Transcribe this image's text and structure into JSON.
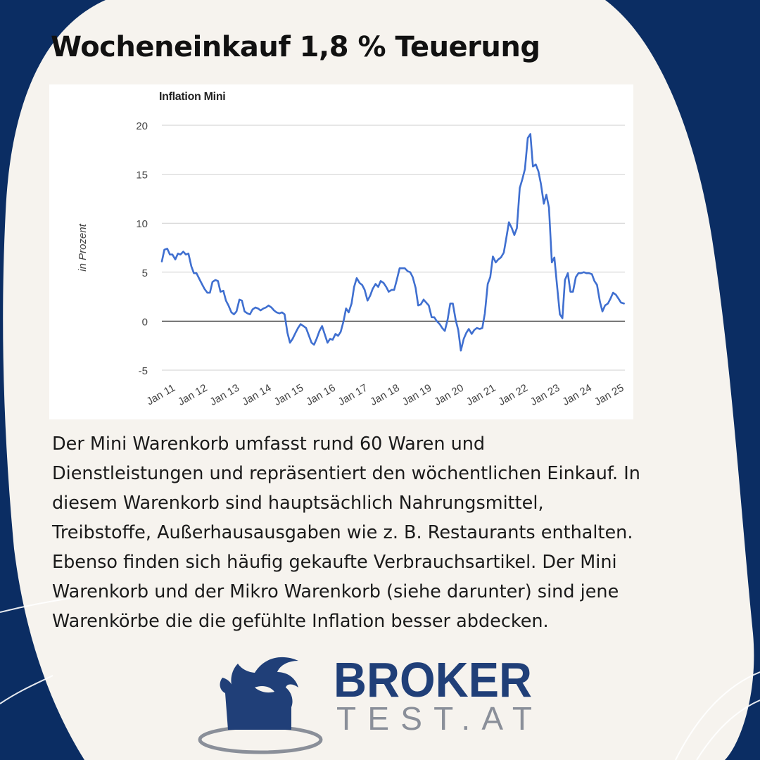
{
  "page": {
    "title": "Wocheneinkauf 1,8 % Teuerung",
    "body_lines": [
      "Der Mini Warenkorb umfasst rund 60 Waren und",
      "Dienstleistungen und repräsentiert den wöchentlichen Einkauf. In",
      "diesem Warenkorb sind hauptsächlich Nahrungsmittel,",
      "Treibstoffe, Außerhausausgaben wie z. B. Restaurants enthalten.",
      "Ebenso finden sich häufig gekaufte Verbrauchsartikel. Der Mini",
      "Warenkorb und der Mikro Warenkorb (siehe darunter) sind jene",
      "Warenkörbe die die gefühlte Inflation besser abdecken."
    ]
  },
  "brand": {
    "line1": "BROKER",
    "line2": "TEST.AT",
    "primary_color": "#203f78",
    "secondary_color": "#8a8f99"
  },
  "colors": {
    "background_dark": "#0b2d63",
    "background_light": "#f6f3ee",
    "line": "#3f6fd0"
  },
  "chart_data": {
    "type": "line",
    "title": "Inflation Mini",
    "ylabel": "in Prozent",
    "xlabel": "",
    "ylim": [
      -5,
      20
    ],
    "yticks": [
      -5,
      0,
      5,
      10,
      15,
      20
    ],
    "xlim": [
      2011,
      2025.45
    ],
    "xtick_labels": [
      "Jan 11",
      "Jan 12",
      "Jan 13",
      "Jan 14",
      "Jan 15",
      "Jan 16",
      "Jan 17",
      "Jan 18",
      "Jan 19",
      "Jan 20",
      "Jan 21",
      "Jan 22",
      "Jan 23",
      "Jan 24",
      "Jan 25"
    ],
    "grid": true,
    "legend": "none",
    "series": [
      {
        "points": [
          [
            2011.0,
            6.1
          ],
          [
            2011.08,
            7.3
          ],
          [
            2011.17,
            7.4
          ],
          [
            2011.25,
            6.8
          ],
          [
            2011.33,
            6.8
          ],
          [
            2011.42,
            6.3
          ],
          [
            2011.5,
            6.9
          ],
          [
            2011.58,
            6.8
          ],
          [
            2011.67,
            7.1
          ],
          [
            2011.75,
            6.8
          ],
          [
            2011.83,
            6.9
          ],
          [
            2011.92,
            5.6
          ],
          [
            2012.0,
            4.9
          ],
          [
            2012.08,
            4.9
          ],
          [
            2012.17,
            4.3
          ],
          [
            2012.25,
            3.8
          ],
          [
            2012.33,
            3.3
          ],
          [
            2012.42,
            2.9
          ],
          [
            2012.5,
            2.9
          ],
          [
            2012.58,
            4.0
          ],
          [
            2012.67,
            4.2
          ],
          [
            2012.75,
            4.1
          ],
          [
            2012.83,
            3.0
          ],
          [
            2012.92,
            3.1
          ],
          [
            2013.0,
            2.1
          ],
          [
            2013.08,
            1.6
          ],
          [
            2013.17,
            0.9
          ],
          [
            2013.25,
            0.7
          ],
          [
            2013.33,
            1.0
          ],
          [
            2013.42,
            2.2
          ],
          [
            2013.5,
            2.1
          ],
          [
            2013.58,
            1.0
          ],
          [
            2013.67,
            0.8
          ],
          [
            2013.75,
            0.7
          ],
          [
            2013.83,
            1.2
          ],
          [
            2013.92,
            1.4
          ],
          [
            2014.0,
            1.3
          ],
          [
            2014.08,
            1.1
          ],
          [
            2014.17,
            1.3
          ],
          [
            2014.25,
            1.4
          ],
          [
            2014.33,
            1.6
          ],
          [
            2014.42,
            1.4
          ],
          [
            2014.5,
            1.1
          ],
          [
            2014.58,
            0.9
          ],
          [
            2014.67,
            0.8
          ],
          [
            2014.75,
            0.9
          ],
          [
            2014.83,
            0.7
          ],
          [
            2014.92,
            -1.2
          ],
          [
            2015.0,
            -2.2
          ],
          [
            2015.08,
            -1.8
          ],
          [
            2015.17,
            -1.2
          ],
          [
            2015.25,
            -0.7
          ],
          [
            2015.33,
            -0.3
          ],
          [
            2015.42,
            -0.5
          ],
          [
            2015.5,
            -0.7
          ],
          [
            2015.58,
            -1.4
          ],
          [
            2015.67,
            -2.2
          ],
          [
            2015.75,
            -2.4
          ],
          [
            2015.83,
            -1.8
          ],
          [
            2015.92,
            -1.0
          ],
          [
            2016.0,
            -0.5
          ],
          [
            2016.08,
            -1.3
          ],
          [
            2016.17,
            -2.2
          ],
          [
            2016.25,
            -1.8
          ],
          [
            2016.33,
            -1.9
          ],
          [
            2016.42,
            -1.3
          ],
          [
            2016.5,
            -1.5
          ],
          [
            2016.58,
            -1.1
          ],
          [
            2016.67,
            0.0
          ],
          [
            2016.75,
            1.3
          ],
          [
            2016.83,
            0.9
          ],
          [
            2016.92,
            1.8
          ],
          [
            2017.0,
            3.5
          ],
          [
            2017.08,
            4.4
          ],
          [
            2017.17,
            3.9
          ],
          [
            2017.25,
            3.7
          ],
          [
            2017.33,
            3.2
          ],
          [
            2017.42,
            2.1
          ],
          [
            2017.5,
            2.6
          ],
          [
            2017.58,
            3.3
          ],
          [
            2017.67,
            3.8
          ],
          [
            2017.75,
            3.5
          ],
          [
            2017.83,
            4.1
          ],
          [
            2017.92,
            3.9
          ],
          [
            2018.0,
            3.5
          ],
          [
            2018.08,
            3.0
          ],
          [
            2018.17,
            3.2
          ],
          [
            2018.25,
            3.2
          ],
          [
            2018.33,
            4.2
          ],
          [
            2018.42,
            5.4
          ],
          [
            2018.5,
            5.4
          ],
          [
            2018.58,
            5.4
          ],
          [
            2018.67,
            5.1
          ],
          [
            2018.75,
            5.0
          ],
          [
            2018.83,
            4.5
          ],
          [
            2018.92,
            3.4
          ],
          [
            2019.0,
            1.6
          ],
          [
            2019.08,
            1.7
          ],
          [
            2019.17,
            2.2
          ],
          [
            2019.25,
            1.9
          ],
          [
            2019.33,
            1.6
          ],
          [
            2019.42,
            0.4
          ],
          [
            2019.5,
            0.4
          ],
          [
            2019.58,
            0.0
          ],
          [
            2019.67,
            -0.3
          ],
          [
            2019.75,
            -0.7
          ],
          [
            2019.83,
            -1.0
          ],
          [
            2019.92,
            0.2
          ],
          [
            2020.0,
            1.8
          ],
          [
            2020.08,
            1.8
          ],
          [
            2020.17,
            0.1
          ],
          [
            2020.25,
            -0.9
          ],
          [
            2020.33,
            -3.0
          ],
          [
            2020.42,
            -1.8
          ],
          [
            2020.5,
            -1.2
          ],
          [
            2020.58,
            -0.8
          ],
          [
            2020.67,
            -1.3
          ],
          [
            2020.75,
            -0.9
          ],
          [
            2020.83,
            -0.7
          ],
          [
            2020.92,
            -0.8
          ],
          [
            2021.0,
            -0.7
          ],
          [
            2021.08,
            0.8
          ],
          [
            2021.17,
            3.8
          ],
          [
            2021.25,
            4.5
          ],
          [
            2021.33,
            6.6
          ],
          [
            2021.42,
            6.0
          ],
          [
            2021.5,
            6.3
          ],
          [
            2021.58,
            6.5
          ],
          [
            2021.67,
            7.0
          ],
          [
            2021.75,
            8.5
          ],
          [
            2021.83,
            10.1
          ],
          [
            2021.92,
            9.5
          ],
          [
            2022.0,
            8.8
          ],
          [
            2022.08,
            9.5
          ],
          [
            2022.17,
            13.6
          ],
          [
            2022.25,
            14.5
          ],
          [
            2022.33,
            15.5
          ],
          [
            2022.42,
            18.7
          ],
          [
            2022.5,
            19.1
          ],
          [
            2022.58,
            15.8
          ],
          [
            2022.67,
            16.0
          ],
          [
            2022.75,
            15.3
          ],
          [
            2022.83,
            14.0
          ],
          [
            2022.92,
            12.0
          ],
          [
            2023.0,
            12.9
          ],
          [
            2023.08,
            11.6
          ],
          [
            2023.17,
            6.0
          ],
          [
            2023.25,
            6.5
          ],
          [
            2023.33,
            3.7
          ],
          [
            2023.42,
            0.7
          ],
          [
            2023.5,
            0.3
          ],
          [
            2023.58,
            4.2
          ],
          [
            2023.67,
            4.9
          ],
          [
            2023.75,
            3.0
          ],
          [
            2023.83,
            3.0
          ],
          [
            2023.92,
            4.5
          ],
          [
            2024.0,
            4.9
          ],
          [
            2024.08,
            4.9
          ],
          [
            2024.17,
            5.0
          ],
          [
            2024.25,
            4.9
          ],
          [
            2024.33,
            4.9
          ],
          [
            2024.42,
            4.8
          ],
          [
            2024.5,
            4.1
          ],
          [
            2024.58,
            3.7
          ],
          [
            2024.67,
            2.0
          ],
          [
            2024.75,
            1.0
          ],
          [
            2024.83,
            1.6
          ],
          [
            2024.92,
            1.8
          ],
          [
            2025.0,
            2.3
          ],
          [
            2025.08,
            2.9
          ],
          [
            2025.17,
            2.7
          ],
          [
            2025.25,
            2.3
          ],
          [
            2025.33,
            1.9
          ],
          [
            2025.42,
            1.8
          ]
        ]
      }
    ]
  }
}
